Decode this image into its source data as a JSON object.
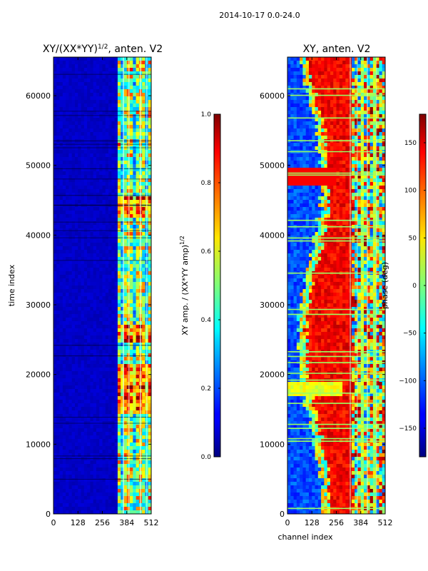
{
  "figure_title": "2014-10-17 0.0-24.0",
  "chart_data": [
    {
      "type": "heatmap",
      "title": "XY/(XX*YY)^1/2, anten. V2",
      "title_base": "XY/(XX*YY)",
      "title_sup": "1/2",
      "title_tail": ", anten. V2",
      "xlabel": "",
      "ylabel": "time index",
      "xlim": [
        0,
        512
      ],
      "ylim": [
        0,
        65536
      ],
      "xticks": [
        0,
        128,
        256,
        384,
        512
      ],
      "yticks": [
        0,
        10000,
        20000,
        30000,
        40000,
        50000,
        60000
      ],
      "colormap": "jet",
      "colorbar": {
        "label_base": "XY amp. / (XX*YY amp)",
        "label_sup": "1/2",
        "range": [
          0.0,
          1.0
        ],
        "ticks": [
          0.0,
          0.2,
          0.4,
          0.6,
          0.8,
          1.0
        ],
        "tick_labels": [
          "0.0",
          "0.2",
          "0.4",
          "0.6",
          "0.8",
          "1.0"
        ]
      }
    },
    {
      "type": "heatmap",
      "title": "XY, anten. V2",
      "xlabel": "channel index",
      "ylabel": "",
      "xlim": [
        0,
        512
      ],
      "ylim": [
        0,
        65536
      ],
      "xticks": [
        0,
        128,
        256,
        384,
        512
      ],
      "yticks": [
        0,
        10000,
        20000,
        30000,
        40000,
        50000,
        60000
      ],
      "colormap": "jet",
      "colorbar": {
        "label": "phase (deg)",
        "range": [
          -180,
          180
        ],
        "ticks": [
          -150,
          -100,
          -50,
          0,
          50,
          100,
          150
        ],
        "tick_labels": [
          "−150",
          "−100",
          "−50",
          "0",
          "50",
          "100",
          "150"
        ]
      }
    }
  ]
}
